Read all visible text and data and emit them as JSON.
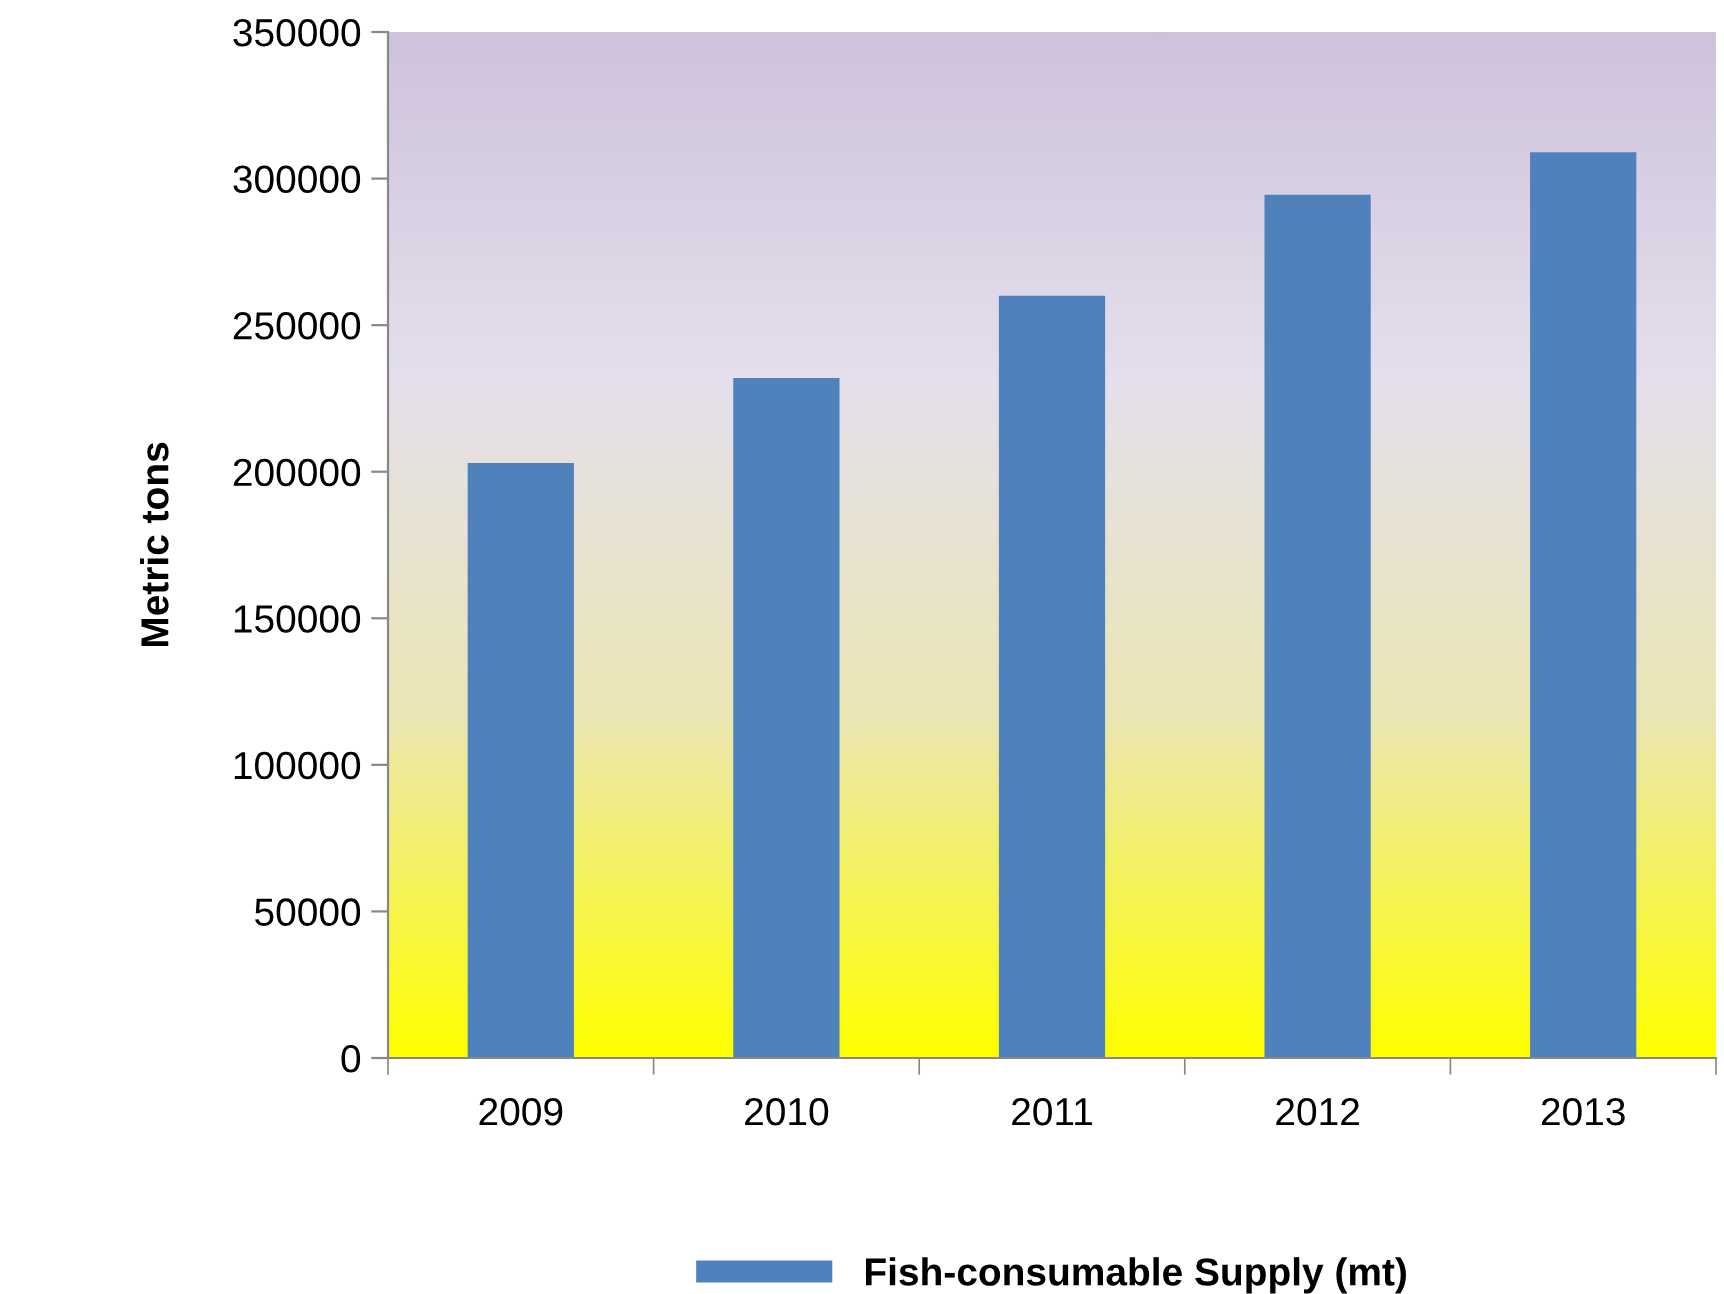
{
  "chart_data": {
    "type": "bar",
    "ylabel": "Metric tons",
    "categories": [
      "2009",
      "2010",
      "2011",
      "2012",
      "2013"
    ],
    "series": [
      {
        "name": "Fish-consumable Supply (mt)",
        "color": "#4f81bd",
        "values": [
          203000,
          232000,
          260000,
          294500,
          309000
        ]
      }
    ],
    "ylim": [
      0,
      350000
    ],
    "yticks": [
      0,
      50000,
      100000,
      150000,
      200000,
      250000,
      300000,
      350000
    ],
    "grid": false,
    "legend": "bottom"
  }
}
